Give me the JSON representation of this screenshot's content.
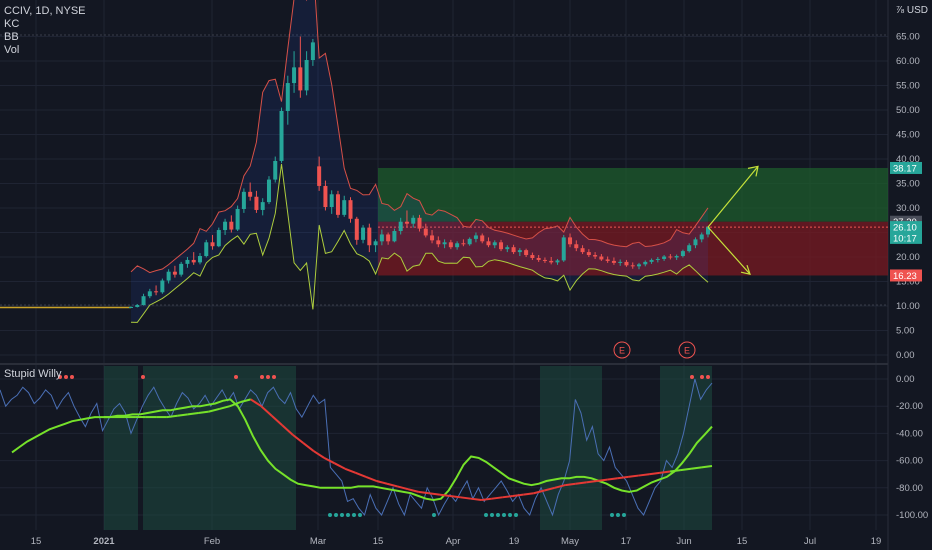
{
  "header": {
    "symbol": "CCIV, 1D, NYSE",
    "indicators": [
      "KC",
      "BB",
      "Vol"
    ],
    "currency": "USD",
    "currency_prefix": "⅞"
  },
  "lower_pane": {
    "title": "Stupid Willy"
  },
  "colors": {
    "background": "#131722",
    "grid": "#1f2433",
    "up": "#26a69a",
    "down": "#ef5350",
    "target_zone": "#1e5c2c",
    "stop_zone": "#7a1a22",
    "band_yellow": "#b5d334",
    "band_red": "#e0503f",
    "arrow": "#c6e23a",
    "slow_line_red": "#e53935",
    "slow_line_green": "#76e22a",
    "fast_line": "#4a6fb5"
  },
  "chart_data": [
    {
      "type": "candlestick",
      "title": "CCIV, 1D, NYSE",
      "x_ticks": [
        "15",
        "2021",
        "Feb",
        "15",
        "Mar",
        "15",
        "Apr",
        "19",
        "May",
        "17",
        "Jun",
        "15",
        "Jul",
        "19"
      ],
      "y_ticks": [
        "65.00",
        "60.00",
        "55.00",
        "50.00",
        "45.00",
        "40.00",
        "35.00",
        "30.00",
        "25.00",
        "20.00",
        "15.00",
        "10.00",
        "5.00",
        "0.00"
      ],
      "ylim": [
        0,
        70
      ],
      "price_labels": [
        {
          "label": "38.17",
          "value": 38.17,
          "color": "#26a69a"
        },
        {
          "label": "27.20",
          "value": 27.2,
          "color": "#4a4e5a"
        },
        {
          "label": "26.10",
          "value": 26.1,
          "color": "#26a69a"
        },
        {
          "label": "10:17",
          "value": 23.9,
          "color": "#26a69a"
        },
        {
          "label": "16.23",
          "value": 16.23,
          "color": "#ef5350"
        }
      ],
      "target_zone": [
        27.2,
        38.17
      ],
      "stop_zone": [
        16.23,
        27.2
      ],
      "events": [
        "E",
        "E"
      ],
      "candles": [
        [
          9.7,
          9.9,
          9.6,
          9.8
        ],
        [
          9.8,
          10.4,
          9.7,
          10.2
        ],
        [
          10.2,
          12.5,
          10.1,
          12.0
        ],
        [
          12.0,
          13.5,
          11.6,
          13.0
        ],
        [
          13.0,
          14.2,
          12.2,
          12.8
        ],
        [
          12.8,
          15.6,
          12.5,
          15.2
        ],
        [
          15.2,
          17.5,
          14.6,
          17.0
        ],
        [
          17.0,
          18.2,
          15.8,
          16.4
        ],
        [
          16.4,
          19.0,
          16.0,
          18.6
        ],
        [
          18.6,
          20.0,
          17.8,
          19.4
        ],
        [
          19.4,
          21.0,
          18.4,
          18.9
        ],
        [
          18.9,
          20.8,
          18.5,
          20.2
        ],
        [
          20.2,
          23.5,
          19.9,
          23.0
        ],
        [
          23.0,
          24.5,
          21.5,
          22.2
        ],
        [
          22.2,
          26.0,
          22.0,
          25.5
        ],
        [
          25.5,
          27.8,
          24.5,
          27.2
        ],
        [
          27.2,
          28.5,
          25.0,
          25.6
        ],
        [
          25.6,
          30.5,
          25.3,
          29.8
        ],
        [
          29.8,
          34.0,
          29.0,
          33.3
        ],
        [
          33.3,
          35.2,
          31.5,
          32.3
        ],
        [
          32.3,
          33.5,
          29.0,
          29.6
        ],
        [
          29.6,
          32.0,
          28.5,
          31.2
        ],
        [
          31.2,
          36.5,
          30.8,
          35.8
        ],
        [
          35.8,
          40.5,
          35.2,
          39.6
        ],
        [
          39.6,
          50.5,
          39.2,
          49.8
        ],
        [
          49.8,
          57.0,
          47.0,
          55.5
        ],
        [
          55.5,
          62.0,
          53.5,
          58.7
        ],
        [
          58.7,
          65.0,
          52.5,
          54.0
        ],
        [
          54.0,
          62.0,
          53.0,
          60.2
        ],
        [
          60.2,
          64.5,
          59.0,
          63.8
        ],
        [
          38.5,
          40.5,
          33.5,
          34.5
        ],
        [
          34.5,
          35.6,
          29.5,
          30.2
        ],
        [
          30.2,
          33.6,
          28.8,
          32.8
        ],
        [
          32.8,
          33.5,
          28.0,
          28.6
        ],
        [
          28.6,
          32.5,
          28.2,
          31.6
        ],
        [
          31.6,
          32.2,
          27.0,
          27.8
        ],
        [
          27.8,
          28.2,
          22.5,
          23.5
        ],
        [
          23.5,
          26.5,
          22.8,
          26.0
        ],
        [
          26.0,
          26.8,
          21.0,
          22.4
        ],
        [
          22.4,
          23.6,
          21.0,
          23.2
        ],
        [
          23.2,
          25.6,
          22.4,
          24.6
        ],
        [
          24.6,
          25.0,
          22.5,
          23.2
        ],
        [
          23.2,
          25.8,
          23.0,
          25.3
        ],
        [
          25.3,
          28.0,
          24.6,
          27.2
        ],
        [
          27.2,
          29.5,
          26.0,
          26.8
        ],
        [
          26.8,
          28.5,
          26.0,
          28.0
        ],
        [
          28.0,
          28.6,
          25.2,
          25.8
        ],
        [
          25.8,
          26.8,
          24.0,
          24.4
        ],
        [
          24.4,
          25.5,
          22.8,
          23.4
        ],
        [
          23.4,
          24.2,
          22.0,
          22.6
        ],
        [
          22.6,
          23.6,
          21.8,
          23.0
        ],
        [
          23.0,
          23.5,
          21.6,
          22.0
        ],
        [
          22.0,
          23.2,
          21.5,
          22.8
        ],
        [
          22.8,
          23.6,
          22.2,
          22.6
        ],
        [
          22.6,
          24.0,
          22.3,
          23.7
        ],
        [
          23.7,
          25.0,
          23.0,
          24.4
        ],
        [
          24.4,
          24.8,
          22.8,
          23.2
        ],
        [
          23.2,
          24.0,
          22.0,
          22.4
        ],
        [
          22.4,
          23.4,
          21.8,
          23.0
        ],
        [
          23.0,
          23.5,
          21.2,
          21.6
        ],
        [
          21.6,
          22.4,
          21.0,
          22.0
        ],
        [
          22.0,
          22.5,
          20.6,
          21.0
        ],
        [
          21.0,
          21.8,
          20.2,
          21.4
        ],
        [
          21.4,
          21.7,
          20.0,
          20.4
        ],
        [
          20.4,
          20.9,
          19.4,
          19.8
        ],
        [
          19.8,
          20.4,
          19.0,
          19.4
        ],
        [
          19.4,
          19.9,
          18.8,
          19.2
        ],
        [
          19.2,
          20.0,
          18.5,
          18.9
        ],
        [
          18.9,
          19.6,
          18.4,
          19.3
        ],
        [
          19.3,
          24.5,
          19.0,
          24.0
        ],
        [
          24.0,
          24.8,
          22.0,
          22.6
        ],
        [
          22.6,
          23.4,
          21.2,
          21.8
        ],
        [
          21.8,
          22.4,
          20.6,
          21.0
        ],
        [
          21.0,
          21.6,
          20.0,
          20.4
        ],
        [
          20.4,
          21.0,
          19.6,
          20.1
        ],
        [
          20.1,
          20.6,
          19.2,
          19.5
        ],
        [
          19.5,
          20.1,
          18.8,
          19.2
        ],
        [
          19.2,
          19.9,
          18.4,
          18.8
        ],
        [
          18.8,
          19.5,
          18.2,
          19.0
        ],
        [
          19.0,
          19.4,
          18.0,
          18.3
        ],
        [
          18.3,
          18.9,
          17.6,
          18.1
        ],
        [
          18.1,
          18.8,
          17.5,
          18.5
        ],
        [
          18.5,
          19.3,
          18.1,
          19.0
        ],
        [
          19.0,
          19.7,
          18.6,
          19.4
        ],
        [
          19.4,
          20.0,
          18.9,
          19.6
        ],
        [
          19.6,
          20.4,
          19.2,
          20.1
        ],
        [
          20.1,
          20.6,
          19.5,
          19.9
        ],
        [
          19.9,
          20.5,
          19.4,
          20.2
        ],
        [
          20.2,
          21.5,
          19.9,
          21.2
        ],
        [
          21.2,
          22.8,
          20.9,
          22.4
        ],
        [
          22.4,
          24.0,
          21.8,
          23.6
        ],
        [
          23.6,
          25.0,
          23.0,
          24.6
        ],
        [
          24.6,
          26.3,
          24.0,
          26.1
        ]
      ]
    },
    {
      "type": "line",
      "title": "Stupid Willy",
      "y_ticks": [
        "0.00",
        "-20.00",
        "-40.00",
        "-60.00",
        "-80.00",
        "-100.00"
      ],
      "ylim": [
        -108,
        8
      ],
      "series": [
        {
          "values": [
            -8,
            -20,
            -15,
            -12,
            -6,
            -10,
            -18,
            -14,
            -8,
            -12,
            -22,
            -15,
            -10,
            -20,
            -28,
            -35,
            -25,
            -18,
            -38,
            -30,
            -22,
            -18,
            -25,
            -40,
            -30,
            -20,
            -12,
            -6,
            -15,
            -22,
            -28,
            -18,
            -10,
            -14,
            -22,
            -18,
            -12,
            -20,
            -14,
            -8,
            -16,
            -10,
            -22,
            -15,
            -8,
            -12,
            -20,
            -10,
            -6,
            -14,
            -18,
            -10,
            -22,
            -28,
            -20,
            -12,
            -18,
            -15,
            -65,
            -70,
            -75,
            -90,
            -88,
            -95,
            -100,
            -85,
            -95,
            -100,
            -90,
            -80,
            -92,
            -100,
            -85,
            -90,
            -95,
            -80,
            -88,
            -100,
            -92,
            -85,
            -90,
            -82,
            -75,
            -88,
            -80,
            -90,
            -85,
            -80,
            -75,
            -82,
            -90,
            -85,
            -95,
            -100,
            -88,
            -80,
            -90,
            -100,
            -85,
            -75,
            -60,
            -15,
            -25,
            -45,
            -35,
            -55,
            -60,
            -50,
            -65,
            -70,
            -75,
            -85,
            -95,
            -100,
            -90,
            -80,
            -75,
            -60,
            -65,
            -55,
            -40,
            -20,
            0,
            -15,
            -8,
            -3
          ]
        },
        {
          "values": [
            -54,
            -50,
            -46,
            -43,
            -40,
            -37,
            -35,
            -33,
            -31,
            -30,
            -29,
            -28,
            -28,
            -28,
            -27,
            -27,
            -26,
            -26,
            -25,
            -24,
            -23,
            -23,
            -22,
            -21,
            -20,
            -20,
            -19,
            -18,
            -16,
            -15,
            -20,
            -30,
            -42,
            -52,
            -60,
            -66,
            -70,
            -74,
            -77,
            -78,
            -79,
            -80,
            -80,
            -80,
            -80,
            -80,
            -79,
            -79,
            -79,
            -80,
            -81,
            -82,
            -83,
            -84,
            -86,
            -88,
            -89,
            -88,
            -82,
            -73,
            -63,
            -57,
            -58,
            -61,
            -65,
            -69,
            -73,
            -75,
            -77,
            -78,
            -77,
            -75,
            -74,
            -73,
            -73,
            -72,
            -72,
            -73,
            -75,
            -77,
            -80,
            -82,
            -83,
            -82,
            -79,
            -76,
            -74,
            -72,
            -68,
            -62,
            -55,
            -47,
            -41,
            -35
          ]
        },
        {
          "values": [
            -28,
            -28,
            -28,
            -28,
            -28,
            -28,
            -28,
            -27,
            -26,
            -25,
            -24,
            -22,
            -20,
            -17,
            -15,
            -20,
            -27,
            -34,
            -41,
            -47,
            -53,
            -58,
            -62,
            -66,
            -69,
            -72,
            -75,
            -77,
            -79,
            -81,
            -83,
            -84,
            -85,
            -86,
            -87,
            -88,
            -89,
            -88,
            -87,
            -86,
            -85,
            -84,
            -82,
            -80,
            -78,
            -77,
            -76,
            -75,
            -74,
            -73,
            -72,
            -71,
            -70,
            -69,
            -68,
            -67,
            -66,
            -65,
            -64
          ]
        }
      ]
    }
  ]
}
